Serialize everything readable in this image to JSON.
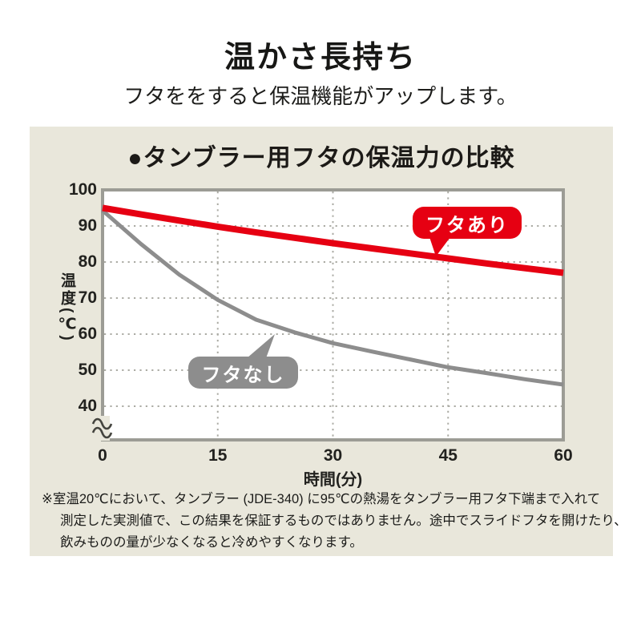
{
  "header": {
    "title": "温かさ長持ち",
    "subtitle": "フタををすると保温機能がアップします。"
  },
  "chart_data": {
    "type": "line",
    "title": "●タンブラー用フタの保温力の比較",
    "xlabel": "時間(分)",
    "ylabel": "温度(℃)",
    "xlim": [
      0,
      60
    ],
    "ylim_shown": [
      40,
      100
    ],
    "y_axis_break_below": 40,
    "xticks": [
      0,
      15,
      30,
      45,
      60
    ],
    "yticks": [
      100,
      90,
      80,
      70,
      60,
      50,
      40
    ],
    "grid": "dotted",
    "legend_position": "callouts-on-chart",
    "series": [
      {
        "name": "フタあり",
        "color": "#e60012",
        "x": [
          0,
          5,
          10,
          15,
          20,
          25,
          30,
          35,
          40,
          45,
          50,
          55,
          60
        ],
        "values": [
          95,
          93.2,
          91.5,
          89.8,
          88.2,
          86.7,
          85.2,
          83.8,
          82.4,
          81,
          79.6,
          78.3,
          77
        ]
      },
      {
        "name": "フタなし",
        "color": "#8d8d8d",
        "x": [
          0,
          5,
          10,
          15,
          20,
          25,
          30,
          35,
          40,
          45,
          50,
          55,
          60
        ],
        "values": [
          94.3,
          85,
          76.5,
          69.5,
          64,
          60.5,
          57.5,
          55.2,
          53,
          50.8,
          49.2,
          47.5,
          46
        ]
      }
    ]
  },
  "footnote": {
    "lines": [
      "※室温20℃において、タンブラー (JDE-340) に95℃の熱湯をタンブラー用フタ下端まで入れて",
      "測定した実測値で、この結果を保証するものではありません。途中でスライドフタを開けたり、",
      "飲みものの量が少なくなると冷めやすくなります。"
    ]
  },
  "colors": {
    "panel_background": "#e9e7db",
    "plot_background": "#ffffff",
    "plot_border": "#9c9c95",
    "grid_dots": "#ababa4",
    "accent_red": "#e60012",
    "line_gray": "#8d8d8d",
    "text": "#1c1c1a"
  }
}
